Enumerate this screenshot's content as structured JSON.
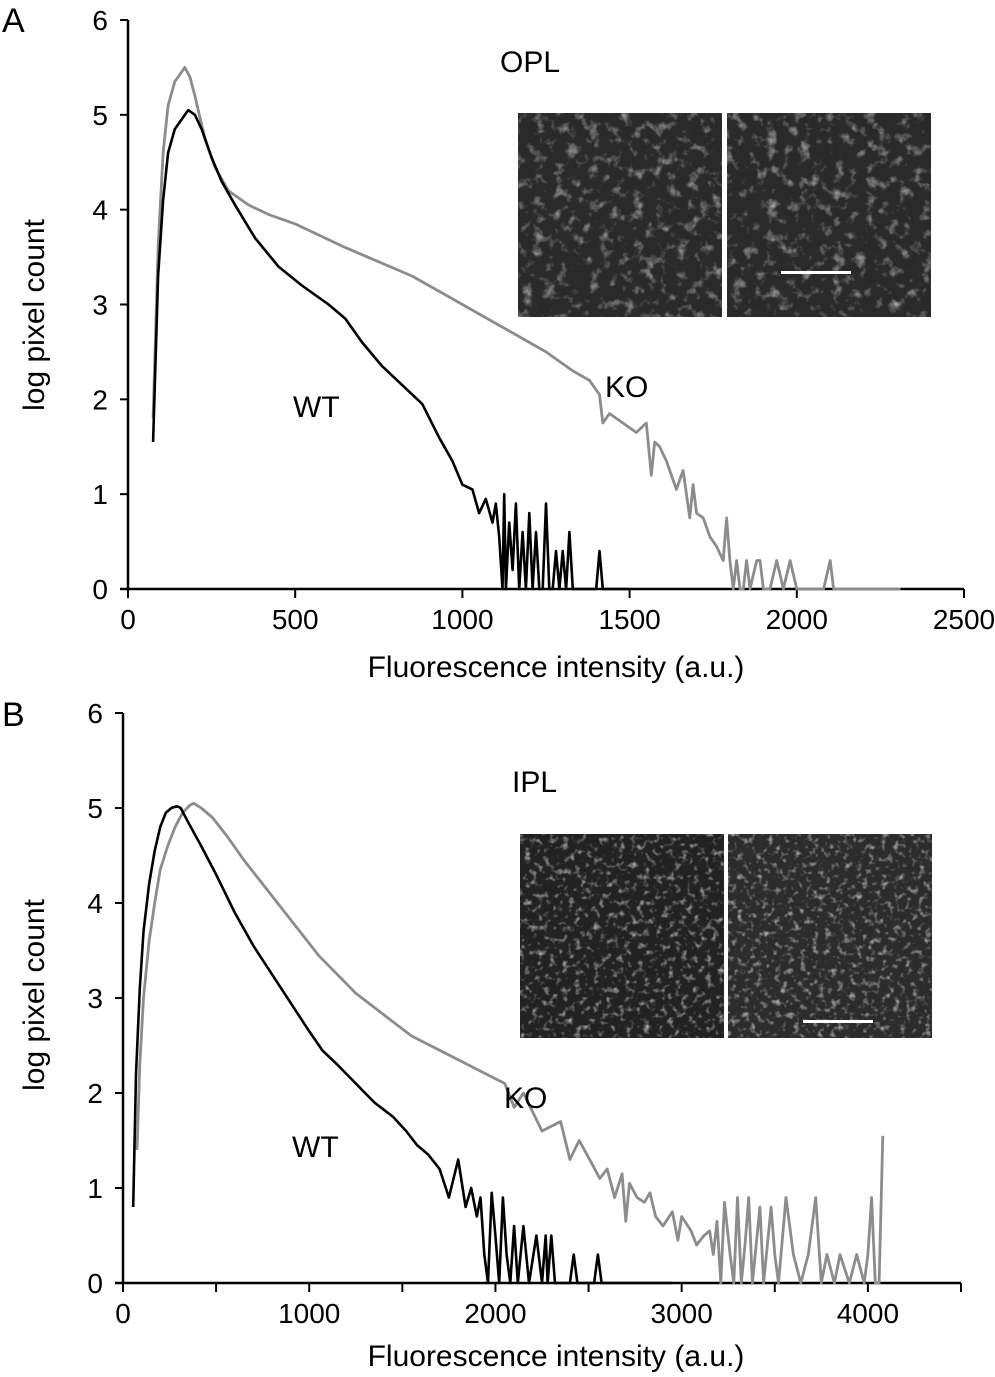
{
  "chart_data": [
    {
      "panel": "A",
      "type": "line",
      "title": "OPL",
      "xlabel": "Fluorescence intensity (a.u.)",
      "ylabel": "log pixel count",
      "xlim": [
        0,
        2500
      ],
      "ylim": [
        0,
        6
      ],
      "xticks": [
        0,
        500,
        1000,
        1500,
        2000,
        2500
      ],
      "yticks": [
        0,
        1,
        2,
        3,
        4,
        5,
        6
      ],
      "grid": false,
      "legend": "none",
      "annotations": [
        {
          "text": "WT",
          "series": "WT"
        },
        {
          "text": "KO",
          "series": "KO"
        }
      ],
      "inset": {
        "description": "two grayscale fluorescence micrographs (WT left, KO right) with scale bar",
        "label": "OPL"
      },
      "series": [
        {
          "name": "WT",
          "color": "#000000",
          "x": [
            75,
            90,
            105,
            120,
            140,
            160,
            180,
            200,
            220,
            250,
            280,
            320,
            380,
            450,
            520,
            600,
            650,
            700,
            760,
            820,
            880,
            930,
            970,
            1000,
            1030,
            1050,
            1070,
            1090,
            1100,
            1110,
            1120,
            1125,
            1130,
            1140,
            1150,
            1160,
            1170,
            1180,
            1190,
            1200,
            1210,
            1220,
            1230,
            1240,
            1250,
            1260,
            1270,
            1280,
            1290,
            1300,
            1310,
            1320,
            1330,
            1400,
            1410,
            1420,
            1430,
            1500
          ],
          "y": [
            1.55,
            3.3,
            4.1,
            4.6,
            4.85,
            4.95,
            5.05,
            5.0,
            4.85,
            4.55,
            4.3,
            4.05,
            3.7,
            3.4,
            3.2,
            3.0,
            2.85,
            2.6,
            2.35,
            2.15,
            1.95,
            1.6,
            1.35,
            1.1,
            1.05,
            0.8,
            0.95,
            0.7,
            0.9,
            0.55,
            0.0,
            1.0,
            0.0,
            0.7,
            0.2,
            0.9,
            0.0,
            0.6,
            0.0,
            0.8,
            0.0,
            0.6,
            0.0,
            0.0,
            0.9,
            0.0,
            0.0,
            0.4,
            0.0,
            0.4,
            0.0,
            0.6,
            0.0,
            0.0,
            0.4,
            0.0,
            0.0,
            0.0
          ]
        },
        {
          "name": "KO",
          "color": "#8c8c8c",
          "x": [
            75,
            90,
            105,
            120,
            140,
            160,
            170,
            185,
            200,
            230,
            260,
            300,
            320,
            360,
            420,
            500,
            560,
            650,
            750,
            850,
            950,
            1050,
            1150,
            1250,
            1330,
            1380,
            1410,
            1420,
            1440,
            1480,
            1520,
            1550,
            1565,
            1575,
            1590,
            1610,
            1640,
            1660,
            1680,
            1690,
            1700,
            1720,
            1740,
            1760,
            1780,
            1790,
            1800,
            1810,
            1820,
            1830,
            1840,
            1850,
            1860,
            1880,
            1890,
            1900,
            1920,
            1940,
            1960,
            1980,
            2000,
            2010,
            2020,
            2040,
            2080,
            2100,
            2110,
            2200,
            2310
          ],
          "y": [
            1.8,
            3.6,
            4.6,
            5.1,
            5.35,
            5.45,
            5.5,
            5.4,
            5.2,
            4.75,
            4.45,
            4.2,
            4.15,
            4.05,
            3.95,
            3.85,
            3.75,
            3.6,
            3.45,
            3.3,
            3.1,
            2.9,
            2.7,
            2.5,
            2.3,
            2.2,
            2.05,
            1.75,
            1.85,
            1.75,
            1.65,
            1.75,
            1.2,
            1.55,
            1.5,
            1.35,
            1.05,
            1.25,
            0.75,
            1.1,
            0.8,
            0.75,
            0.55,
            0.45,
            0.3,
            0.75,
            0.3,
            0.0,
            0.3,
            0.0,
            0.0,
            0.3,
            0.0,
            0.3,
            0.3,
            0.0,
            0.0,
            0.3,
            0.0,
            0.3,
            0.0,
            0.0,
            0.0,
            0.0,
            0.0,
            0.3,
            0.0,
            0.0,
            0.0
          ]
        }
      ]
    },
    {
      "panel": "B",
      "type": "line",
      "title": "IPL",
      "xlabel": "Fluorescence intensity (a.u.)",
      "ylabel": "log pixel count",
      "xlim": [
        0,
        4500
      ],
      "ylim": [
        0,
        6
      ],
      "xticks": [
        0,
        1000,
        2000,
        3000,
        4000
      ],
      "xticks_minor": [
        500,
        1500,
        2500,
        3500,
        4500
      ],
      "yticks": [
        0,
        1,
        2,
        3,
        4,
        5,
        6
      ],
      "grid": false,
      "legend": "none",
      "annotations": [
        {
          "text": "WT",
          "series": "WT"
        },
        {
          "text": "KO",
          "series": "KO"
        }
      ],
      "inset": {
        "description": "two grayscale fluorescence micrographs (WT left, KO right) with scale bar",
        "label": "IPL"
      },
      "series": [
        {
          "name": "WT",
          "color": "#000000",
          "x": [
            55,
            70,
            90,
            110,
            140,
            170,
            200,
            230,
            260,
            290,
            310,
            350,
            420,
            500,
            600,
            700,
            800,
            900,
            1000,
            1070,
            1150,
            1250,
            1350,
            1450,
            1520,
            1580,
            1640,
            1700,
            1750,
            1800,
            1840,
            1870,
            1900,
            1920,
            1940,
            1960,
            1980,
            2000,
            2020,
            2040,
            2060,
            2080,
            2100,
            2120,
            2150,
            2180,
            2220,
            2250,
            2270,
            2280,
            2300,
            2320,
            2400,
            2420,
            2440,
            2530,
            2550,
            2570,
            2950
          ],
          "y": [
            0.8,
            2.2,
            3.1,
            3.7,
            4.2,
            4.55,
            4.8,
            4.95,
            5.0,
            5.02,
            5.0,
            4.85,
            4.6,
            4.3,
            3.9,
            3.55,
            3.25,
            2.95,
            2.65,
            2.45,
            2.3,
            2.1,
            1.9,
            1.75,
            1.6,
            1.45,
            1.35,
            1.2,
            0.9,
            1.3,
            0.8,
            1.0,
            0.7,
            0.9,
            0.3,
            0.0,
            0.95,
            0.5,
            0.0,
            0.9,
            0.3,
            0.0,
            0.6,
            0.0,
            0.6,
            0.0,
            0.5,
            0.0,
            0.5,
            0.0,
            0.5,
            0.0,
            0.0,
            0.3,
            0.0,
            0.0,
            0.3,
            0.0,
            0.0
          ]
        },
        {
          "name": "KO",
          "color": "#8c8c8c",
          "x": [
            75,
            90,
            110,
            140,
            170,
            200,
            240,
            280,
            320,
            360,
            380,
            420,
            480,
            560,
            650,
            750,
            850,
            950,
            1050,
            1150,
            1250,
            1350,
            1450,
            1550,
            1650,
            1750,
            1850,
            1950,
            2050,
            2100,
            2150,
            2250,
            2350,
            2400,
            2450,
            2520,
            2560,
            2600,
            2640,
            2680,
            2700,
            2720,
            2760,
            2800,
            2830,
            2860,
            2900,
            2950,
            2980,
            3000,
            3050,
            3080,
            3120,
            3150,
            3170,
            3190,
            3210,
            3230,
            3260,
            3280,
            3300,
            3320,
            3340,
            3360,
            3380,
            3420,
            3440,
            3480,
            3500,
            3520,
            3560,
            3600,
            3640,
            3680,
            3720,
            3750,
            3780,
            3820,
            3850,
            3900,
            3940,
            3980,
            4000,
            4020,
            4040,
            4060,
            4080
          ],
          "y": [
            1.4,
            2.3,
            3.0,
            3.6,
            4.0,
            4.35,
            4.6,
            4.8,
            4.95,
            5.03,
            5.05,
            5.0,
            4.9,
            4.7,
            4.45,
            4.2,
            3.95,
            3.7,
            3.45,
            3.25,
            3.05,
            2.9,
            2.75,
            2.6,
            2.5,
            2.4,
            2.3,
            2.2,
            2.1,
            1.85,
            2.0,
            1.6,
            1.7,
            1.3,
            1.5,
            1.25,
            1.1,
            1.2,
            0.9,
            1.15,
            0.65,
            1.05,
            0.9,
            0.85,
            0.95,
            0.7,
            0.6,
            0.75,
            0.45,
            0.7,
            0.55,
            0.4,
            0.5,
            0.55,
            0.3,
            0.65,
            0.0,
            0.85,
            0.3,
            0.0,
            0.9,
            0.0,
            0.4,
            0.9,
            0.0,
            0.8,
            0.0,
            0.8,
            0.3,
            0.0,
            0.9,
            0.3,
            0.0,
            0.3,
            0.9,
            0.0,
            0.3,
            0.0,
            0.3,
            0.0,
            0.3,
            0.0,
            0.3,
            0.9,
            0.0,
            0.0,
            1.55
          ]
        }
      ]
    }
  ],
  "labels": {
    "panel_a": "A",
    "panel_b": "B",
    "inset_a": "OPL",
    "inset_b": "IPL",
    "wt": "WT",
    "ko": "KO",
    "xlabel": "Fluorescence intensity (a.u.)",
    "ylabel": "log pixel count"
  }
}
